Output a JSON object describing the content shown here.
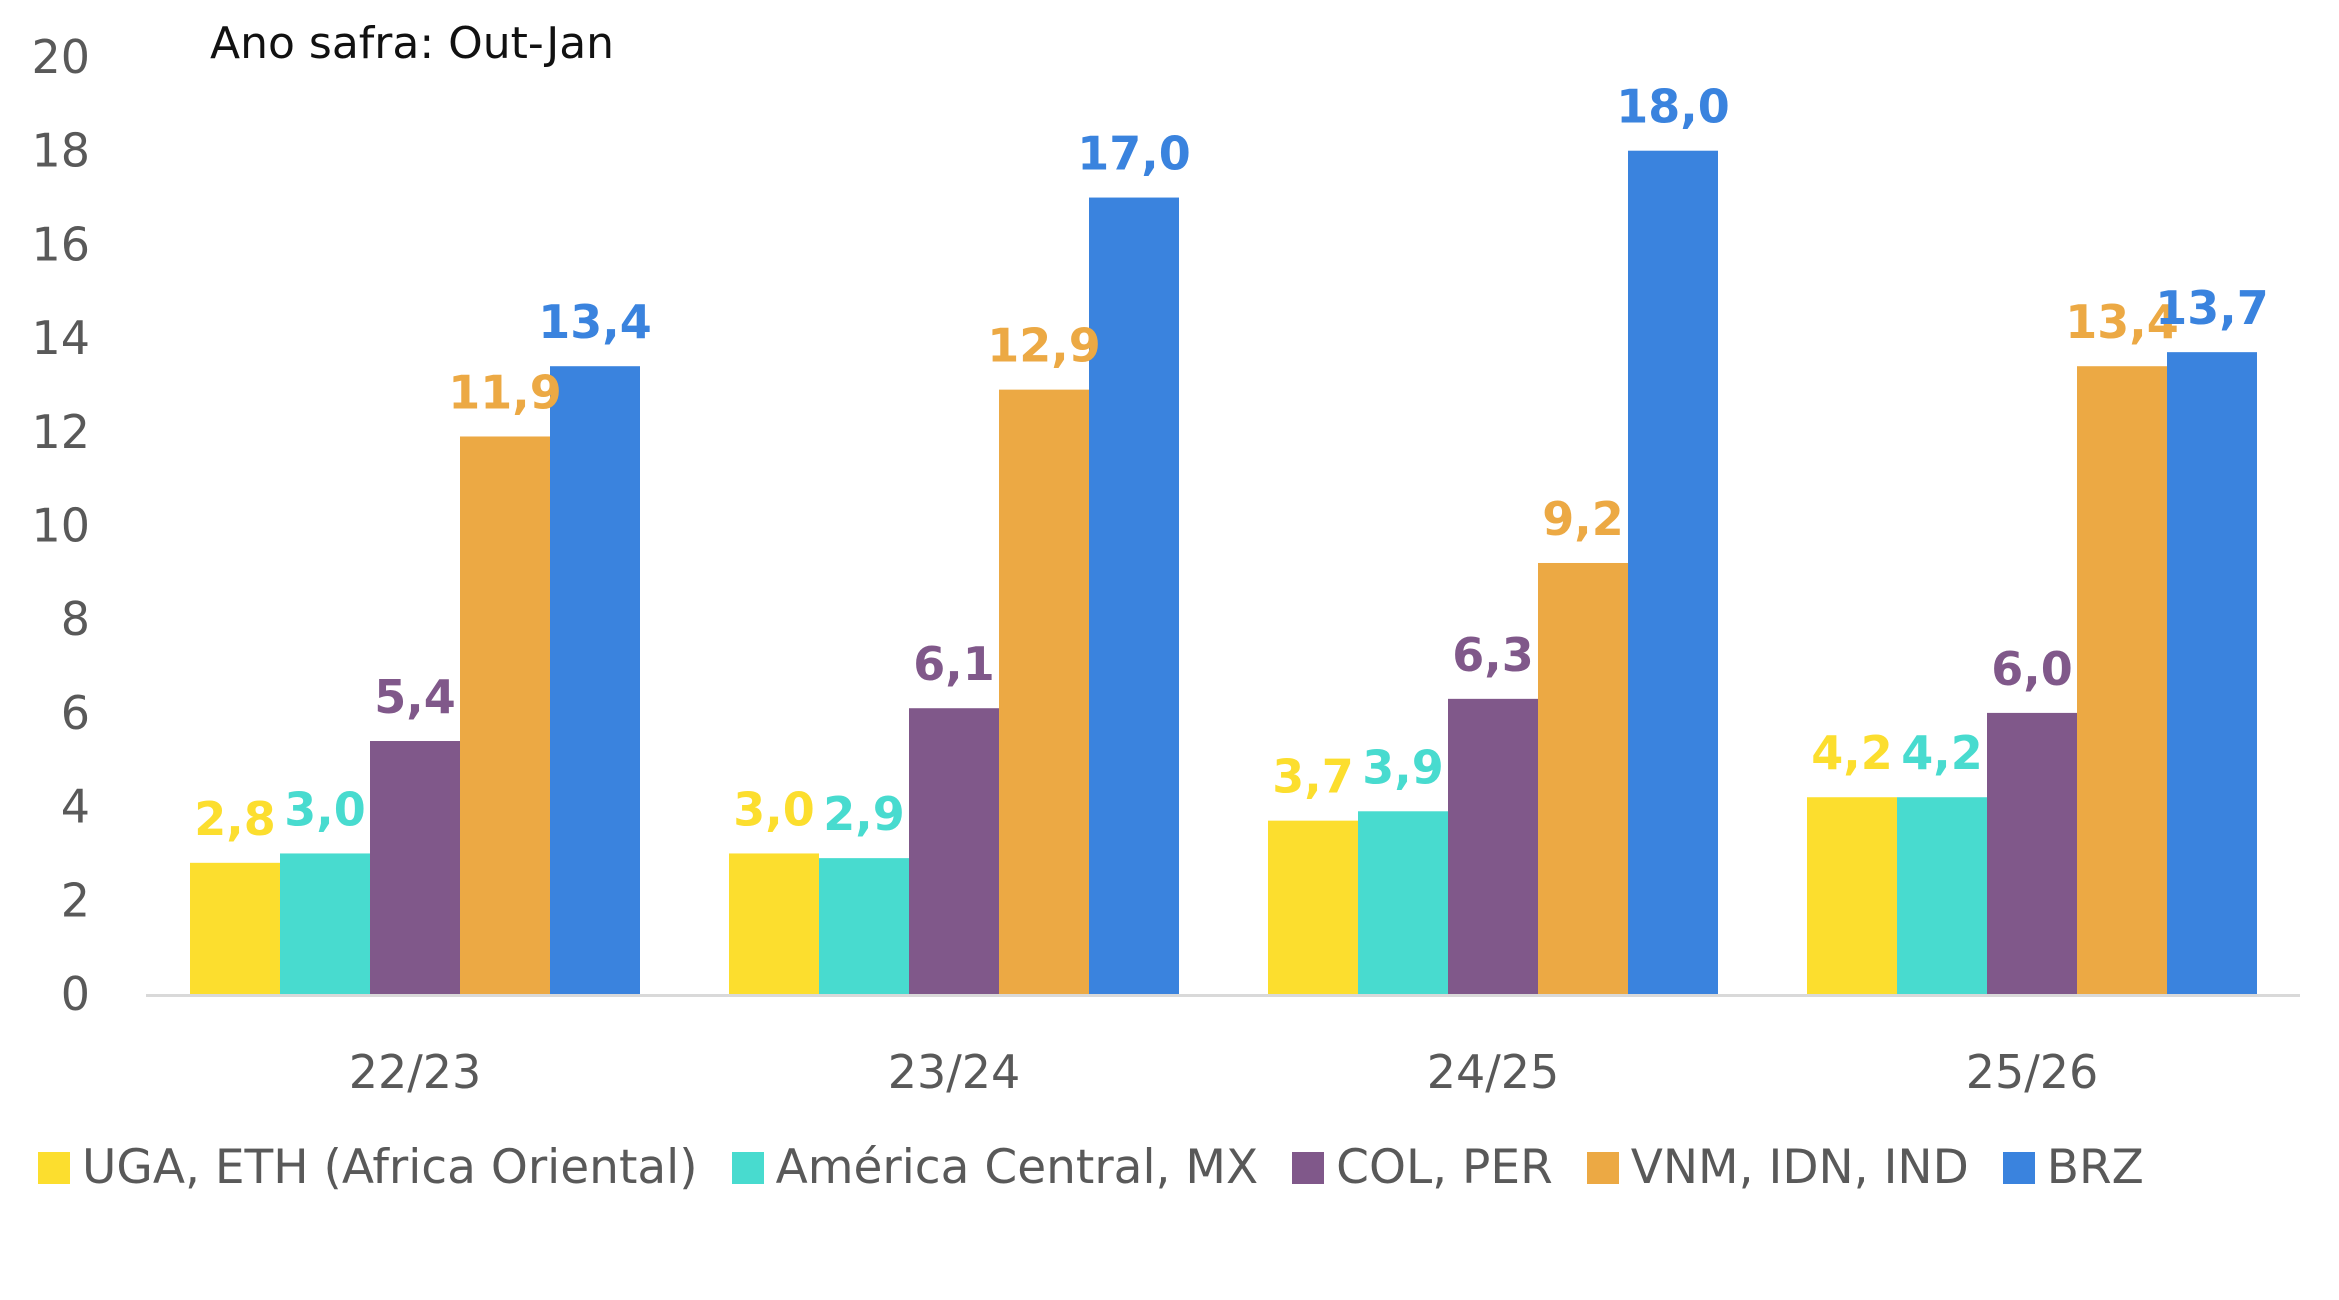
{
  "chart_data": {
    "type": "bar",
    "title": "Ano safra: Out-Jan",
    "xlabel": "",
    "ylabel": "",
    "ylim": [
      0,
      20
    ],
    "yticks": [
      0,
      2,
      4,
      6,
      8,
      10,
      12,
      14,
      16,
      18,
      20
    ],
    "grid": false,
    "legend_position": "bottom",
    "categories": [
      "22/23",
      "23/24",
      "24/25",
      "25/26"
    ],
    "series": [
      {
        "name": "UGA, ETH (Africa Oriental)",
        "color": "#FCDE2E",
        "values": [
          2.8,
          3.0,
          3.7,
          4.2
        ],
        "labels": [
          "2,8",
          "3,0",
          "3,7",
          "4,2"
        ]
      },
      {
        "name": "América Central, MX",
        "color": "#48DBCF",
        "values": [
          3.0,
          2.9,
          3.9,
          4.2
        ],
        "labels": [
          "3,0",
          "2,9",
          "3,9",
          "4,2"
        ]
      },
      {
        "name": "COL, PER",
        "color": "#80588A",
        "values": [
          5.4,
          6.1,
          6.3,
          6.0
        ],
        "labels": [
          "5,4",
          "6,1",
          "6,3",
          "6,0"
        ]
      },
      {
        "name": "VNM, IDN, IND",
        "color": "#ECA944",
        "values": [
          11.9,
          12.9,
          9.2,
          13.4
        ],
        "labels": [
          "11,9",
          "12,9",
          "9,2",
          "13,4"
        ]
      },
      {
        "name": "BRZ",
        "color": "#3A83DE",
        "values": [
          13.4,
          17.0,
          18.0,
          13.7
        ],
        "labels": [
          "13,4",
          "17,0",
          "18,0",
          "13,7"
        ]
      }
    ],
    "axis_color": "#D9D9D9",
    "tick_color": "#595959"
  }
}
